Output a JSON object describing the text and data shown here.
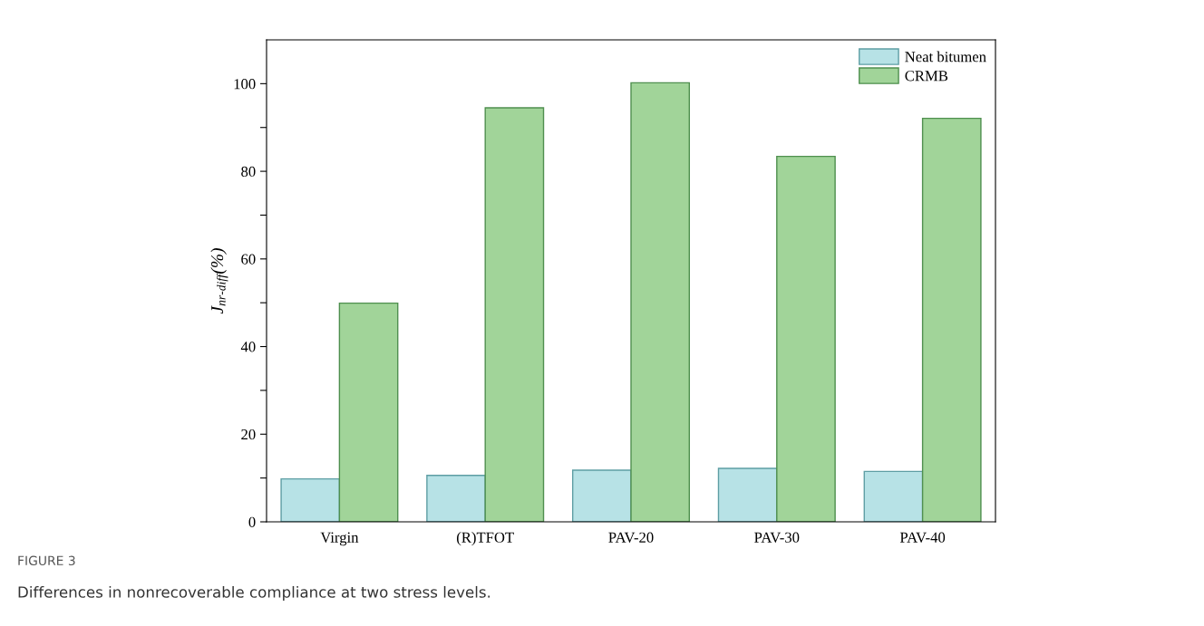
{
  "chart_data": {
    "type": "bar",
    "ylabel": "J$_{nr-diff}$(%)",
    "categories": [
      "Virgin",
      "(R)TFOT",
      "PAV-20",
      "PAV-30",
      "PAV-40"
    ],
    "series": [
      {
        "name": "Neat bitumen",
        "color": "#b7e2e6",
        "values": [
          9.8,
          10.6,
          11.8,
          12.2,
          11.5
        ]
      },
      {
        "name": "CRMB",
        "color": "#a1d499",
        "values": [
          49.9,
          94.5,
          100.2,
          83.4,
          92.1
        ]
      }
    ],
    "ylim": [
      0,
      110
    ],
    "yticks": [
      0,
      {
        "value": 10,
        "label": null
      },
      20,
      {
        "value": 30,
        "label": null
      },
      40,
      {
        "value": 50,
        "label": null
      },
      60,
      {
        "value": 70,
        "label": null
      },
      80,
      {
        "value": 90,
        "label": null
      },
      100
    ],
    "grid": false,
    "legend": "top right",
    "annotations": [
      "FIGURE 3",
      "Differences in nonrecoverable compliance at two stress levels."
    ]
  }
}
